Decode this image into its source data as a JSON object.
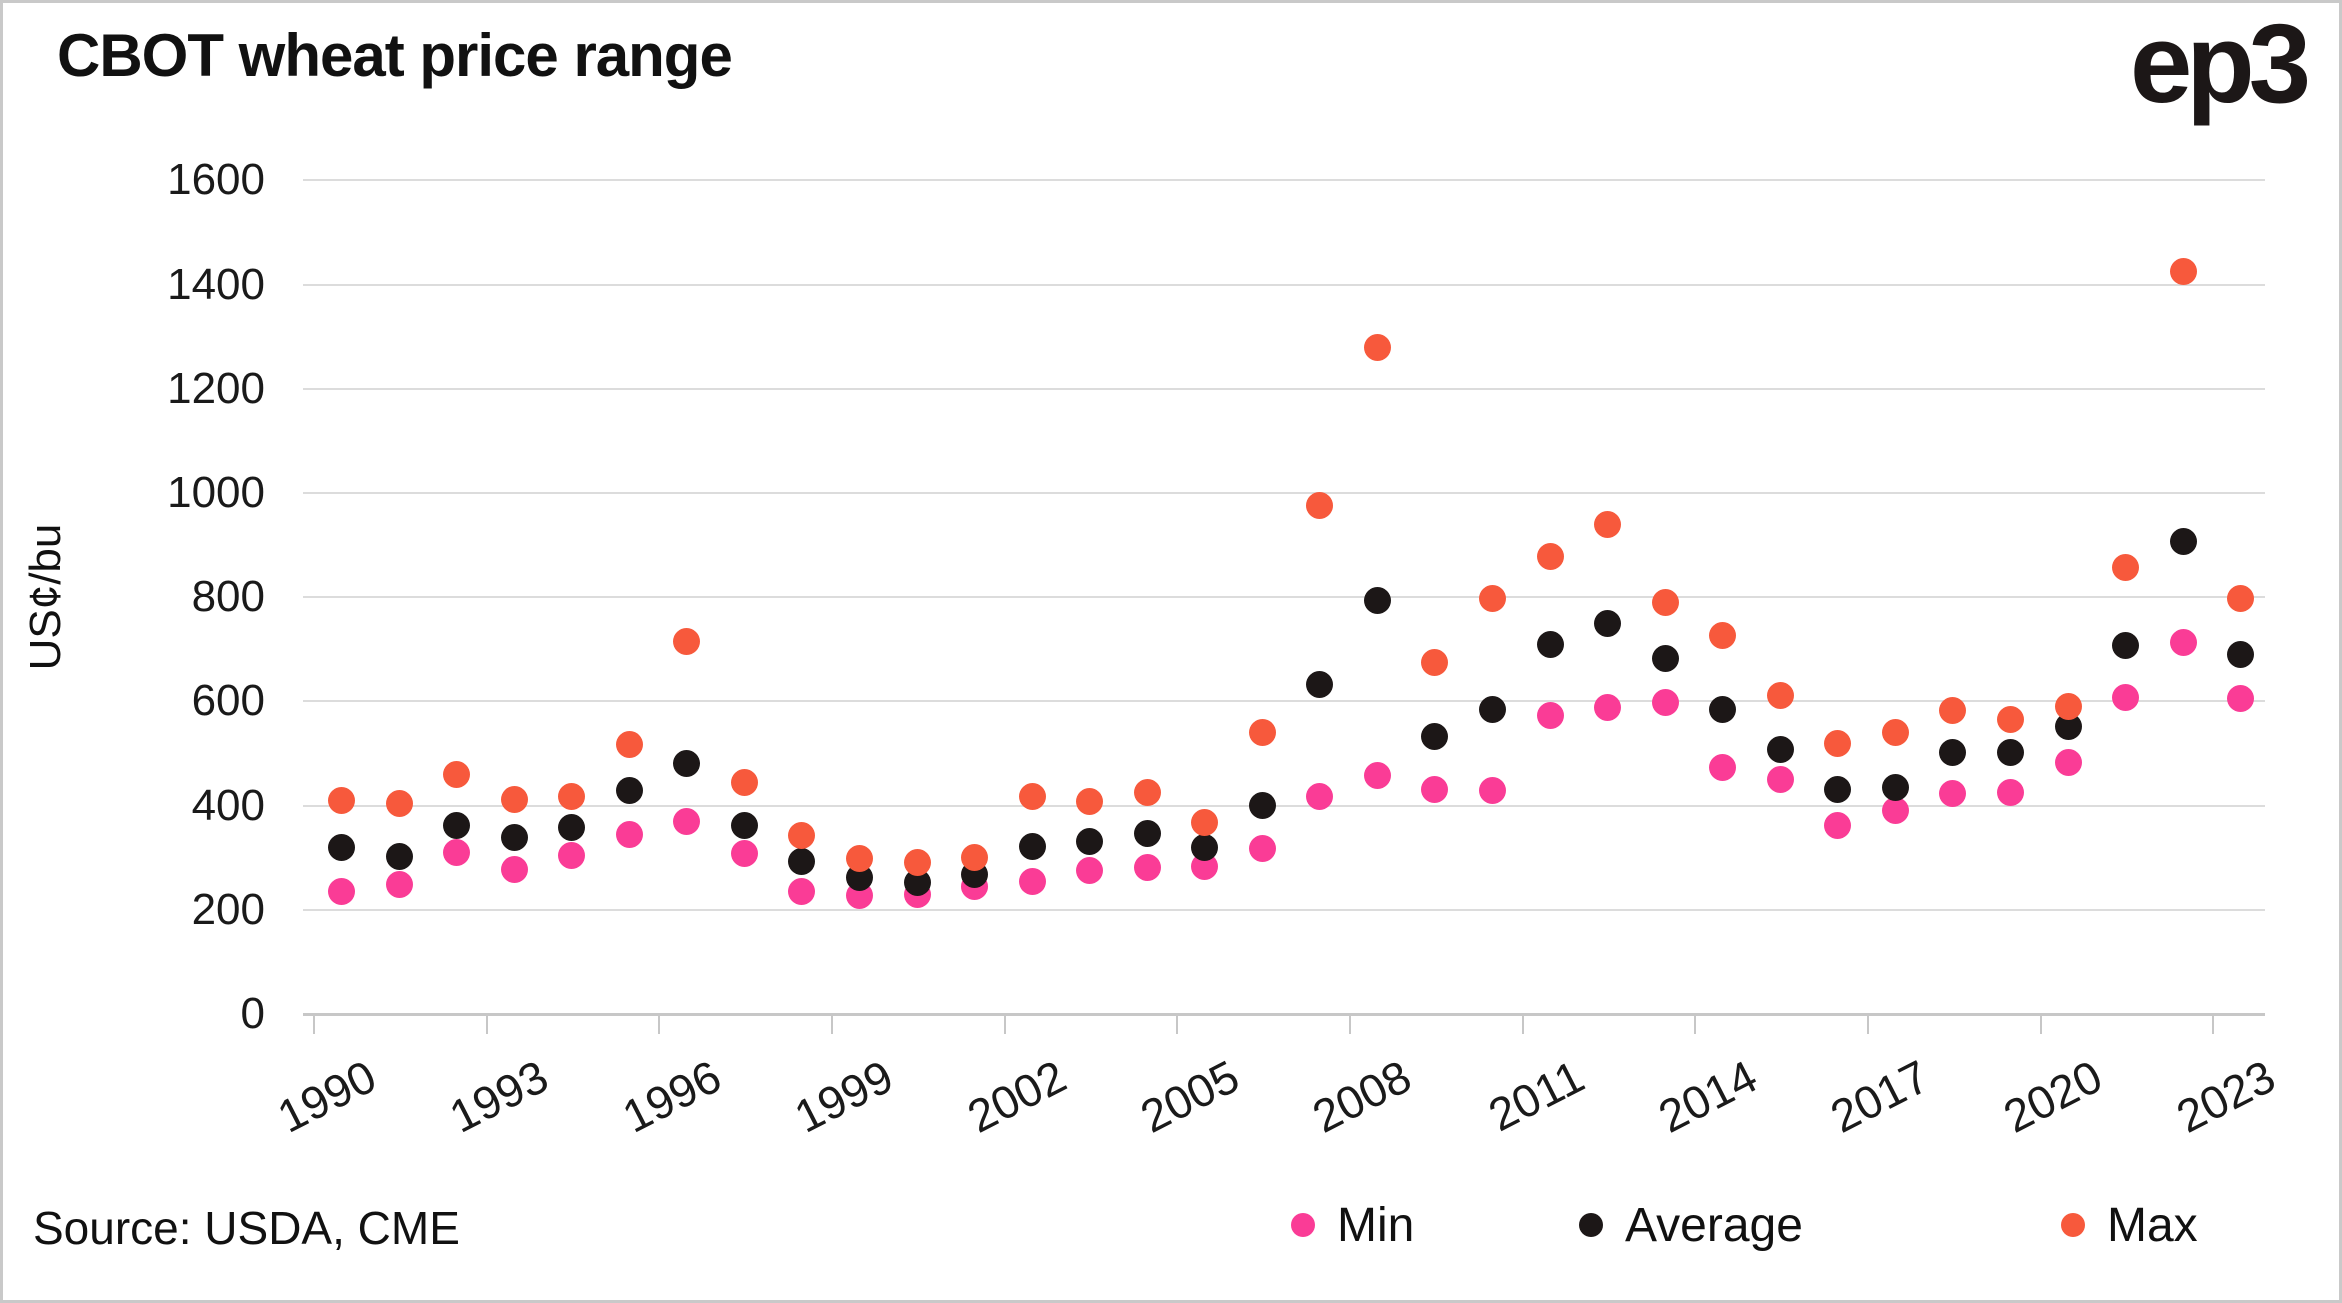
{
  "title": "CBOT wheat price range",
  "logo_text": "ep3",
  "source_note": "Source: USDA, CME",
  "colors": {
    "min": "#fa3c96",
    "average": "#1c1717",
    "max": "#f7593c",
    "gridline": "#dcdcdc",
    "axis": "#c7c7c7",
    "text": "#111111"
  },
  "y_axis": {
    "title": "US¢/bu",
    "tick_labels": [
      "0",
      "200",
      "400",
      "600",
      "800",
      "1000",
      "1200",
      "1400",
      "1600"
    ],
    "tick_values": [
      0,
      200,
      400,
      600,
      800,
      1000,
      1200,
      1400,
      1600
    ]
  },
  "x_axis": {
    "tick_labels": [
      "1990",
      "1993",
      "1996",
      "1999",
      "2002",
      "2005",
      "2008",
      "2011",
      "2014",
      "2017",
      "2020",
      "2023"
    ]
  },
  "legend": [
    {
      "label": "Min",
      "color_key": "min"
    },
    {
      "label": "Average",
      "color_key": "average"
    },
    {
      "label": "Max",
      "color_key": "max"
    }
  ],
  "chart_data": {
    "type": "scatter",
    "title": "CBOT wheat price range",
    "xlabel": "",
    "ylabel": "US¢/bu",
    "ylim": [
      0,
      1600
    ],
    "grid": "horizontal",
    "legend_position": "bottom-right",
    "x": [
      1990,
      1991,
      1992,
      1993,
      1994,
      1995,
      1996,
      1997,
      1998,
      1999,
      2000,
      2001,
      2002,
      2003,
      2004,
      2005,
      2006,
      2007,
      2008,
      2009,
      2010,
      2011,
      2012,
      2013,
      2014,
      2015,
      2016,
      2017,
      2018,
      2019,
      2020,
      2021,
      2022,
      2023
    ],
    "series": [
      {
        "name": "Min",
        "color": "#fa3c96",
        "values": [
          235,
          248,
          309,
          278,
          304,
          344,
          369,
          308,
          236,
          228,
          230,
          245,
          255,
          276,
          282,
          284,
          318,
          418,
          457,
          431,
          428,
          572,
          588,
          597,
          473,
          450,
          361,
          390,
          423,
          425,
          482,
          607,
          713,
          606
        ]
      },
      {
        "name": "Average",
        "color": "#1c1717",
        "values": [
          319,
          303,
          361,
          338,
          357,
          428,
          480,
          361,
          292,
          262,
          253,
          268,
          322,
          332,
          347,
          319,
          401,
          633,
          794,
          532,
          585,
          710,
          749,
          682,
          585,
          508,
          430,
          435,
          501,
          501,
          551,
          707,
          906,
          690
        ]
      },
      {
        "name": "Max",
        "color": "#f7593c",
        "values": [
          409,
          404,
          460,
          412,
          418,
          518,
          715,
          445,
          342,
          298,
          290,
          301,
          417,
          408,
          425,
          367,
          541,
          975,
          1280,
          675,
          798,
          878,
          940,
          789,
          727,
          612,
          519,
          541,
          583,
          565,
          590,
          856,
          1425,
          798
        ]
      }
    ]
  }
}
